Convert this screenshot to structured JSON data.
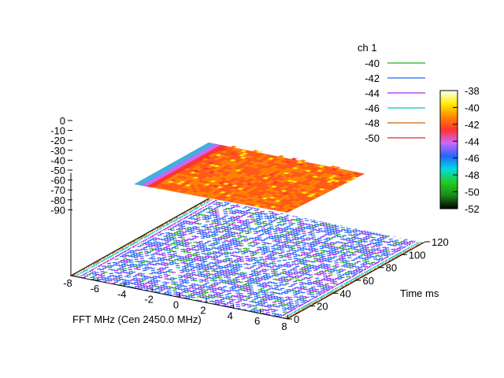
{
  "chart_data": {
    "type": "surface3d",
    "title": "",
    "xlabel": "FFT MHz (Cen 2450.0 MHz)",
    "ylabel": "Time ms",
    "zlabel": "",
    "x_range": [
      -8,
      8
    ],
    "x_ticks": [
      "-8",
      "-6",
      "-4",
      "-2",
      "0",
      "2",
      "4",
      "6",
      "8"
    ],
    "y_range": [
      0,
      120
    ],
    "y_ticks": [
      "0",
      "20",
      "40",
      "60",
      "80",
      "100",
      "120"
    ],
    "z_range": [
      -90,
      0
    ],
    "z_ticks": [
      "0",
      "-10",
      "-20",
      "-30",
      "-40",
      "-50",
      "-60",
      "-70",
      "-80",
      "-90"
    ],
    "surface_level_dB": -41,
    "band_edges_MHz": [
      -7.5,
      7.5
    ],
    "edge_profile": [
      {
        "offset_MHz": 0.0,
        "value_dB": -45
      },
      {
        "offset_MHz": 0.2,
        "value_dB": -44
      },
      {
        "offset_MHz": 0.4,
        "value_dB": -43
      },
      {
        "offset_MHz": 0.6,
        "value_dB": -42
      }
    ],
    "colorbar": {
      "ticks": [
        "-38",
        "-40",
        "-42",
        "-44",
        "-46",
        "-48",
        "-50",
        "-52"
      ],
      "range": [
        -52,
        -38
      ],
      "stops": [
        "#000000",
        "#1a8a1a",
        "#22cc22",
        "#00dddd",
        "#2266ff",
        "#cc66ff",
        "#ff3333",
        "#ff8800",
        "#ffee00",
        "#ffffff"
      ]
    },
    "contour_legend": {
      "title": "ch 1",
      "entries": [
        {
          "label": "-40",
          "color": "#22aa22"
        },
        {
          "label": "-42",
          "color": "#2266ff"
        },
        {
          "label": "-44",
          "color": "#aa22ee"
        },
        {
          "label": "-46",
          "color": "#00cccc"
        },
        {
          "label": "-48",
          "color": "#cc6600"
        },
        {
          "label": "-50",
          "color": "#ee2222"
        }
      ]
    }
  }
}
